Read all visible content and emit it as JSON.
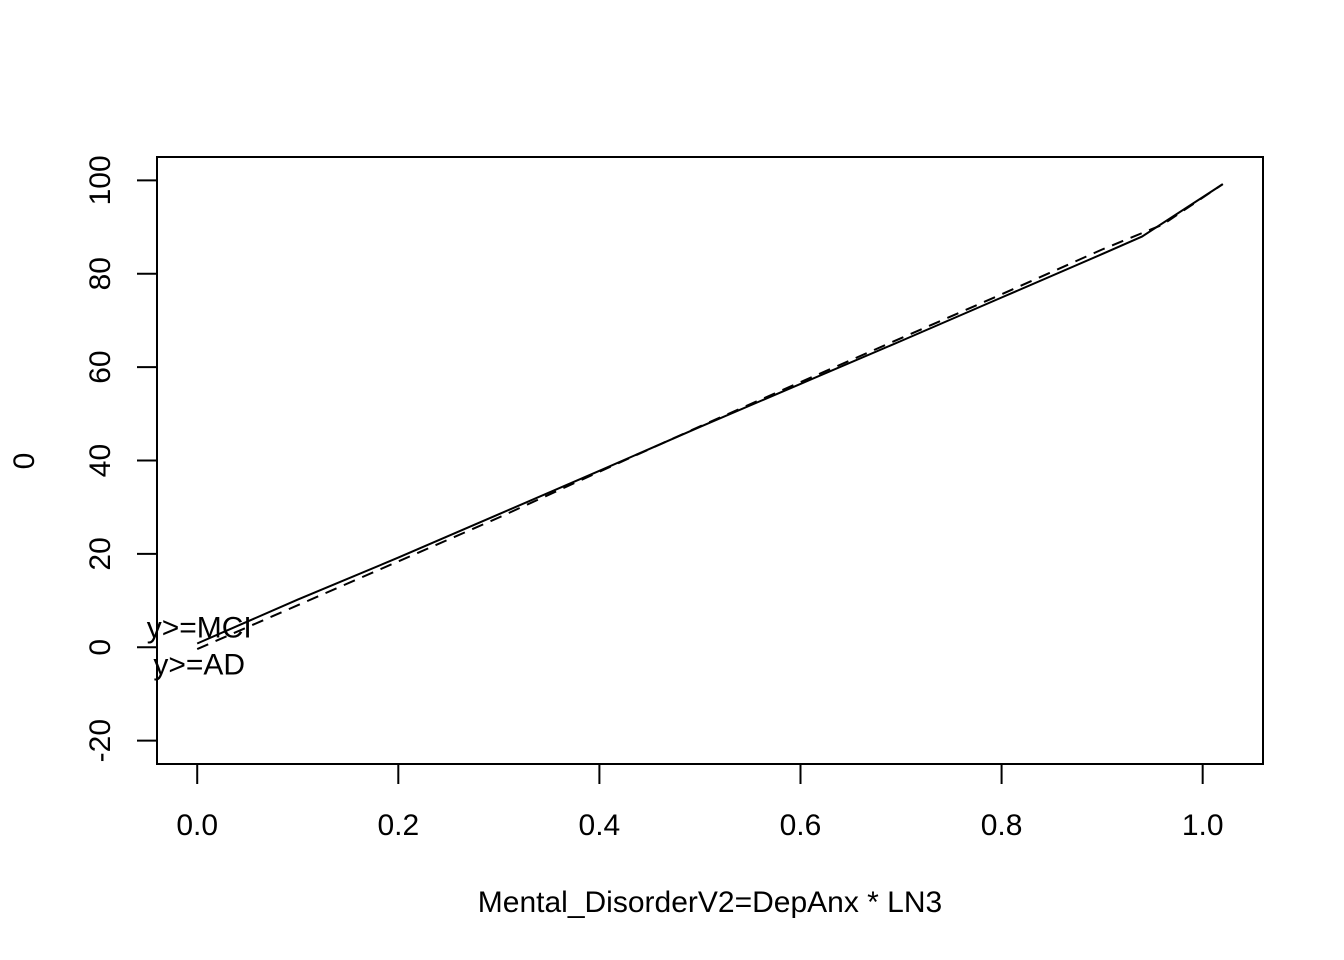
{
  "chart_data": {
    "type": "line",
    "title": "",
    "xlabel": "Mental_DisorderV2=DepAnx * LN3",
    "ylabel": "0",
    "xlim": [
      -0.04,
      1.06
    ],
    "ylim": [
      -25,
      105
    ],
    "xticks": [
      "0.0",
      "0.2",
      "0.4",
      "0.6",
      "0.8",
      "1.0"
    ],
    "xtick_values": [
      0.0,
      0.2,
      0.4,
      0.6,
      0.8,
      1.0
    ],
    "yticks": [
      "-20",
      "0",
      "20",
      "40",
      "60",
      "80",
      "100"
    ],
    "ytick_values": [
      -20,
      0,
      20,
      40,
      60,
      80,
      100
    ],
    "grid": false,
    "series": [
      {
        "line_style": "solid",
        "x": [
          0.0,
          0.1,
          0.2,
          0.3,
          0.4,
          0.5,
          0.6,
          0.7,
          0.8,
          0.9,
          0.94,
          1.02
        ],
        "y": [
          0.8,
          10.2,
          19.2,
          28.5,
          37.8,
          47.2,
          56.4,
          65.6,
          74.9,
          84.2,
          88.0,
          99.2
        ]
      },
      {
        "line_style": "dashed",
        "x": [
          0.0,
          0.1,
          0.2,
          0.3,
          0.4,
          0.5,
          0.6,
          0.7,
          0.8,
          0.9,
          0.96,
          1.02
        ],
        "y": [
          -0.4,
          9.0,
          18.4,
          27.8,
          37.6,
          47.3,
          56.8,
          66.2,
          75.6,
          85.2,
          90.5,
          99.2
        ]
      }
    ],
    "annotations": [
      {
        "text": "y>=MCI",
        "x": 0.0,
        "y": 4.5
      },
      {
        "text": "y>=AD",
        "x": 0.0,
        "y": -3.5
      }
    ]
  }
}
